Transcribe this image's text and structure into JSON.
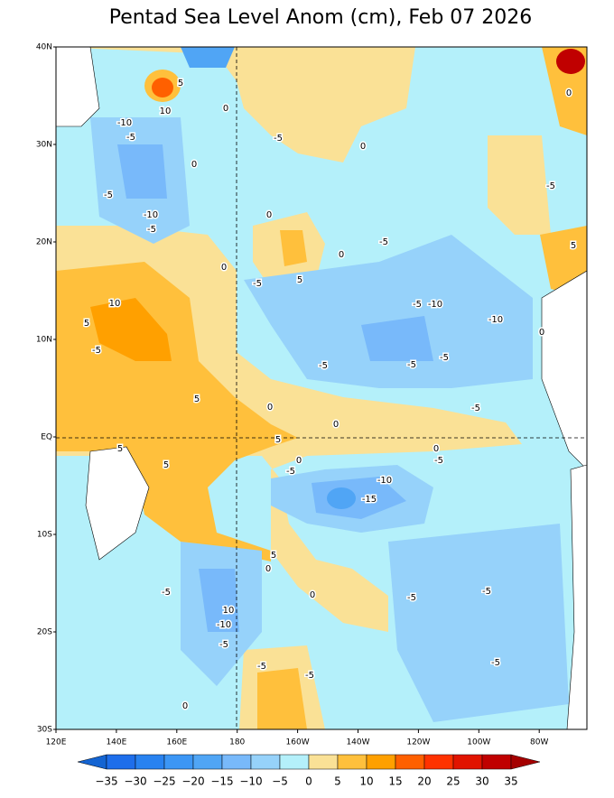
{
  "title": "Pentad Sea Level Anom (cm), Feb 07 2026",
  "lat_labels": [
    "40N",
    "30N",
    "20N",
    "10N",
    "EQ",
    "10S",
    "20S",
    "30S"
  ],
  "lon_labels": [
    "120E",
    "140E",
    "160E",
    "180",
    "160W",
    "140W",
    "120W",
    "100W",
    "80W"
  ],
  "colorbar": {
    "labels": [
      "−35",
      "−30",
      "−25",
      "−20",
      "−15",
      "−10",
      "−5",
      "0",
      "5",
      "10",
      "15",
      "20",
      "25",
      "30",
      "35"
    ],
    "colors": [
      "#1464d2",
      "#1e6eeb",
      "#2882f0",
      "#3c96f5",
      "#50a5f5",
      "#78b9fa",
      "#96d2fa",
      "#b4f0fa",
      "#fae196",
      "#ffc03c",
      "#ffa000",
      "#ff6000",
      "#ff3200",
      "#e11400",
      "#c00000",
      "#a50000"
    ]
  },
  "contour_labels": [
    "5",
    "10",
    "0",
    "-10",
    "-5",
    "0",
    "-5",
    "-10",
    "-5",
    "-5",
    "0",
    "0",
    "0",
    "5",
    "-5",
    "0",
    "-5",
    "-5",
    "-10",
    "-10",
    "10",
    "5",
    "-5",
    "-5",
    "-5",
    "-5",
    "5",
    "0",
    "0",
    "-5",
    "5",
    "5",
    "0",
    "-5",
    "5",
    "-5",
    "0",
    "-10",
    "-15",
    "5",
    "0",
    "-5",
    "0",
    "-5",
    "-5",
    "10",
    "-10",
    "-5",
    "-5",
    "-5",
    "-5",
    "0",
    "-5",
    "5",
    "0",
    "0"
  ]
}
